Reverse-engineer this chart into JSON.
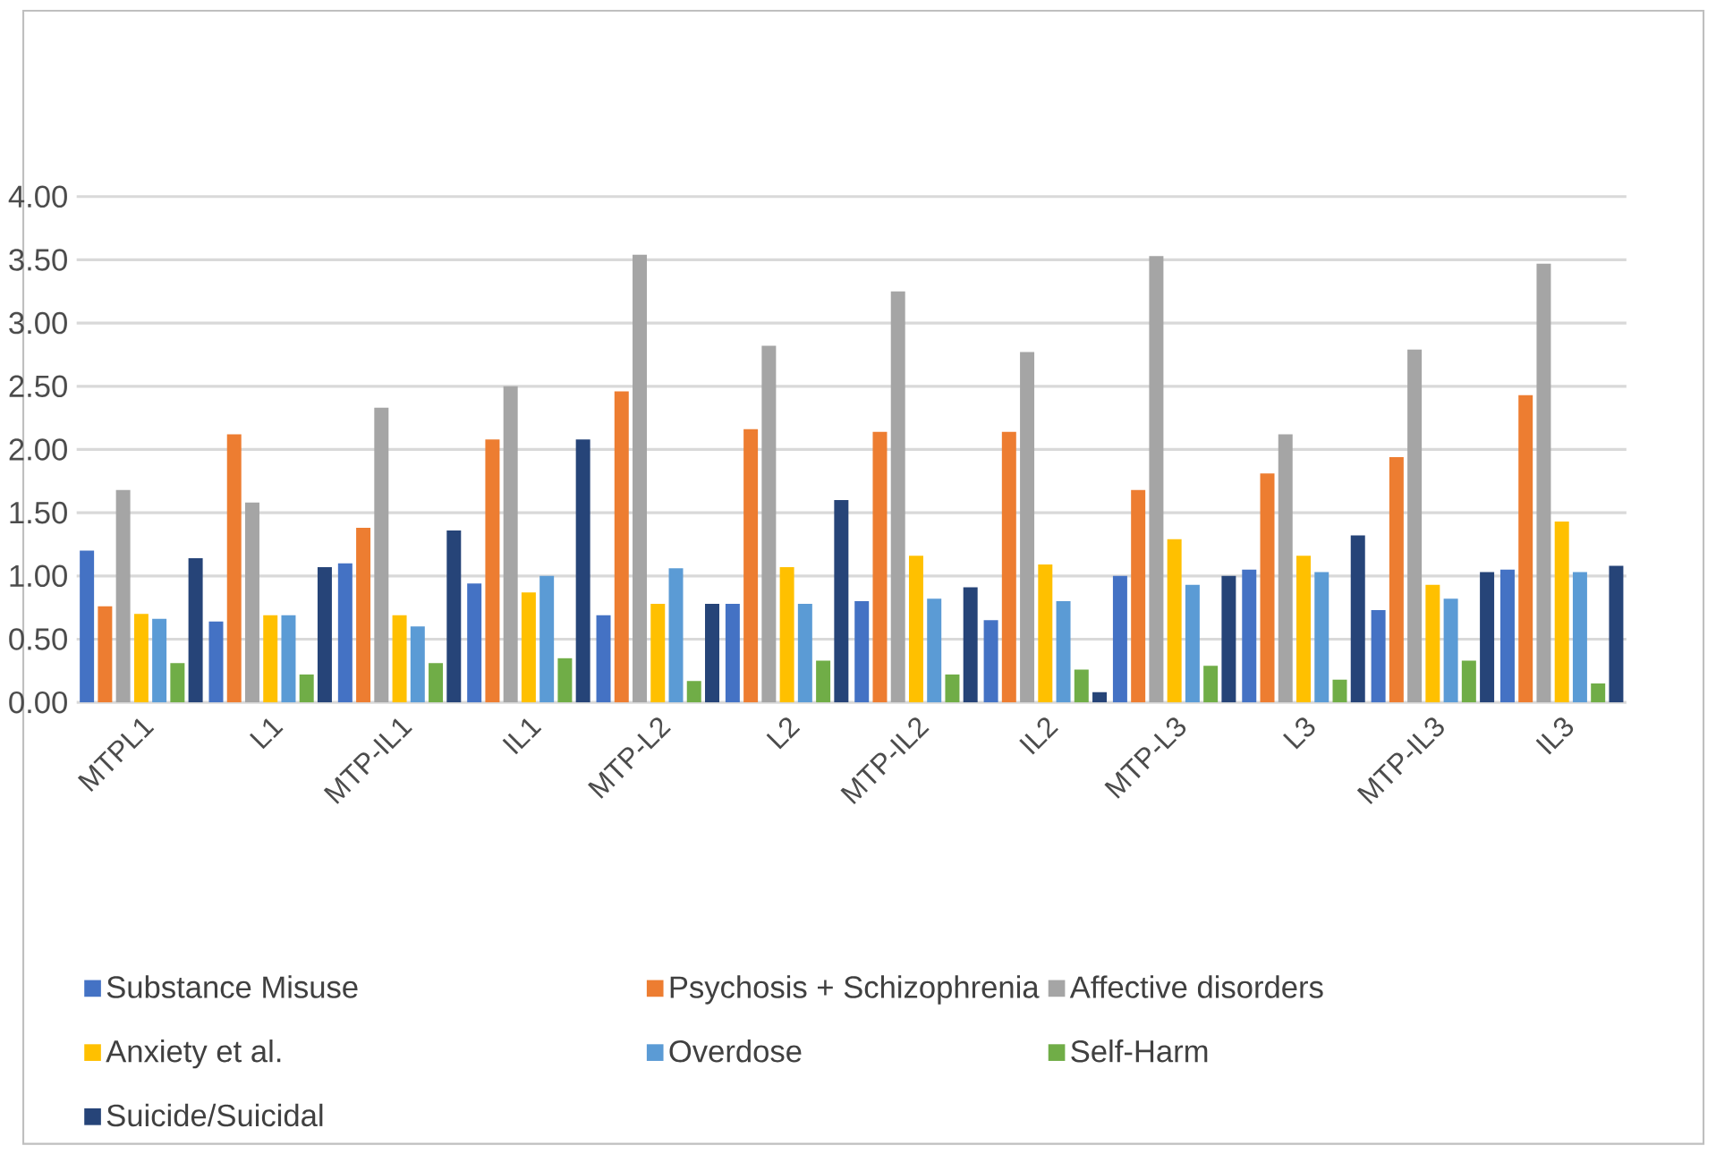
{
  "chart_data": {
    "type": "bar",
    "categories": [
      "MTPL1",
      "L1",
      "MTP-IL1",
      "IL1",
      "MTP-L2",
      "L2",
      "MTP-IL2",
      "IL2",
      "MTP-L3",
      "L3",
      "MTP-IL3",
      "IL3"
    ],
    "series": [
      {
        "name": "Substance Misuse",
        "color": "#4472c4",
        "values": [
          1.2,
          0.64,
          1.1,
          0.94,
          0.69,
          0.78,
          0.8,
          0.65,
          1.0,
          1.05,
          0.73,
          1.05
        ]
      },
      {
        "name": "Psychosis + Schizophrenia",
        "color": "#ed7d31",
        "values": [
          0.76,
          2.12,
          1.38,
          2.08,
          2.46,
          2.16,
          2.14,
          2.14,
          1.68,
          1.81,
          1.94,
          2.43
        ]
      },
      {
        "name": "Affective disorders",
        "color": "#a5a5a5",
        "values": [
          1.68,
          1.58,
          2.33,
          2.5,
          3.54,
          2.82,
          3.25,
          2.77,
          3.53,
          2.12,
          2.79,
          3.47
        ]
      },
      {
        "name": "Anxiety et al.",
        "color": "#ffc000",
        "values": [
          0.7,
          0.69,
          0.69,
          0.87,
          0.78,
          1.07,
          1.16,
          1.09,
          1.29,
          1.16,
          0.93,
          1.43
        ]
      },
      {
        "name": "Overdose",
        "color": "#5b9bd5",
        "values": [
          0.66,
          0.69,
          0.6,
          1.0,
          1.06,
          0.78,
          0.82,
          0.8,
          0.93,
          1.03,
          0.82,
          1.03
        ]
      },
      {
        "name": "Self-Harm",
        "color": "#70ad47",
        "values": [
          0.31,
          0.22,
          0.31,
          0.35,
          0.17,
          0.33,
          0.22,
          0.26,
          0.29,
          0.18,
          0.33,
          0.15
        ]
      },
      {
        "name": "Suicide/Suicidal",
        "color": "#264478",
        "values": [
          1.14,
          1.07,
          1.36,
          2.08,
          0.78,
          1.6,
          0.91,
          0.08,
          1.0,
          1.32,
          1.03,
          1.08
        ]
      }
    ],
    "ylim": [
      0,
      4
    ],
    "yticks": [
      {
        "value": 0,
        "label": "0.00"
      },
      {
        "value": 0.5,
        "label": "0.50"
      },
      {
        "value": 1,
        "label": "1.00"
      },
      {
        "value": 1.5,
        "label": "1.50"
      },
      {
        "value": 2,
        "label": "2.00"
      },
      {
        "value": 2.5,
        "label": "2.50"
      },
      {
        "value": 3,
        "label": "3.00"
      },
      {
        "value": 3.5,
        "label": "3.50"
      },
      {
        "value": 4,
        "label": "4.00"
      }
    ],
    "grid": "y",
    "legend": "bottom"
  }
}
